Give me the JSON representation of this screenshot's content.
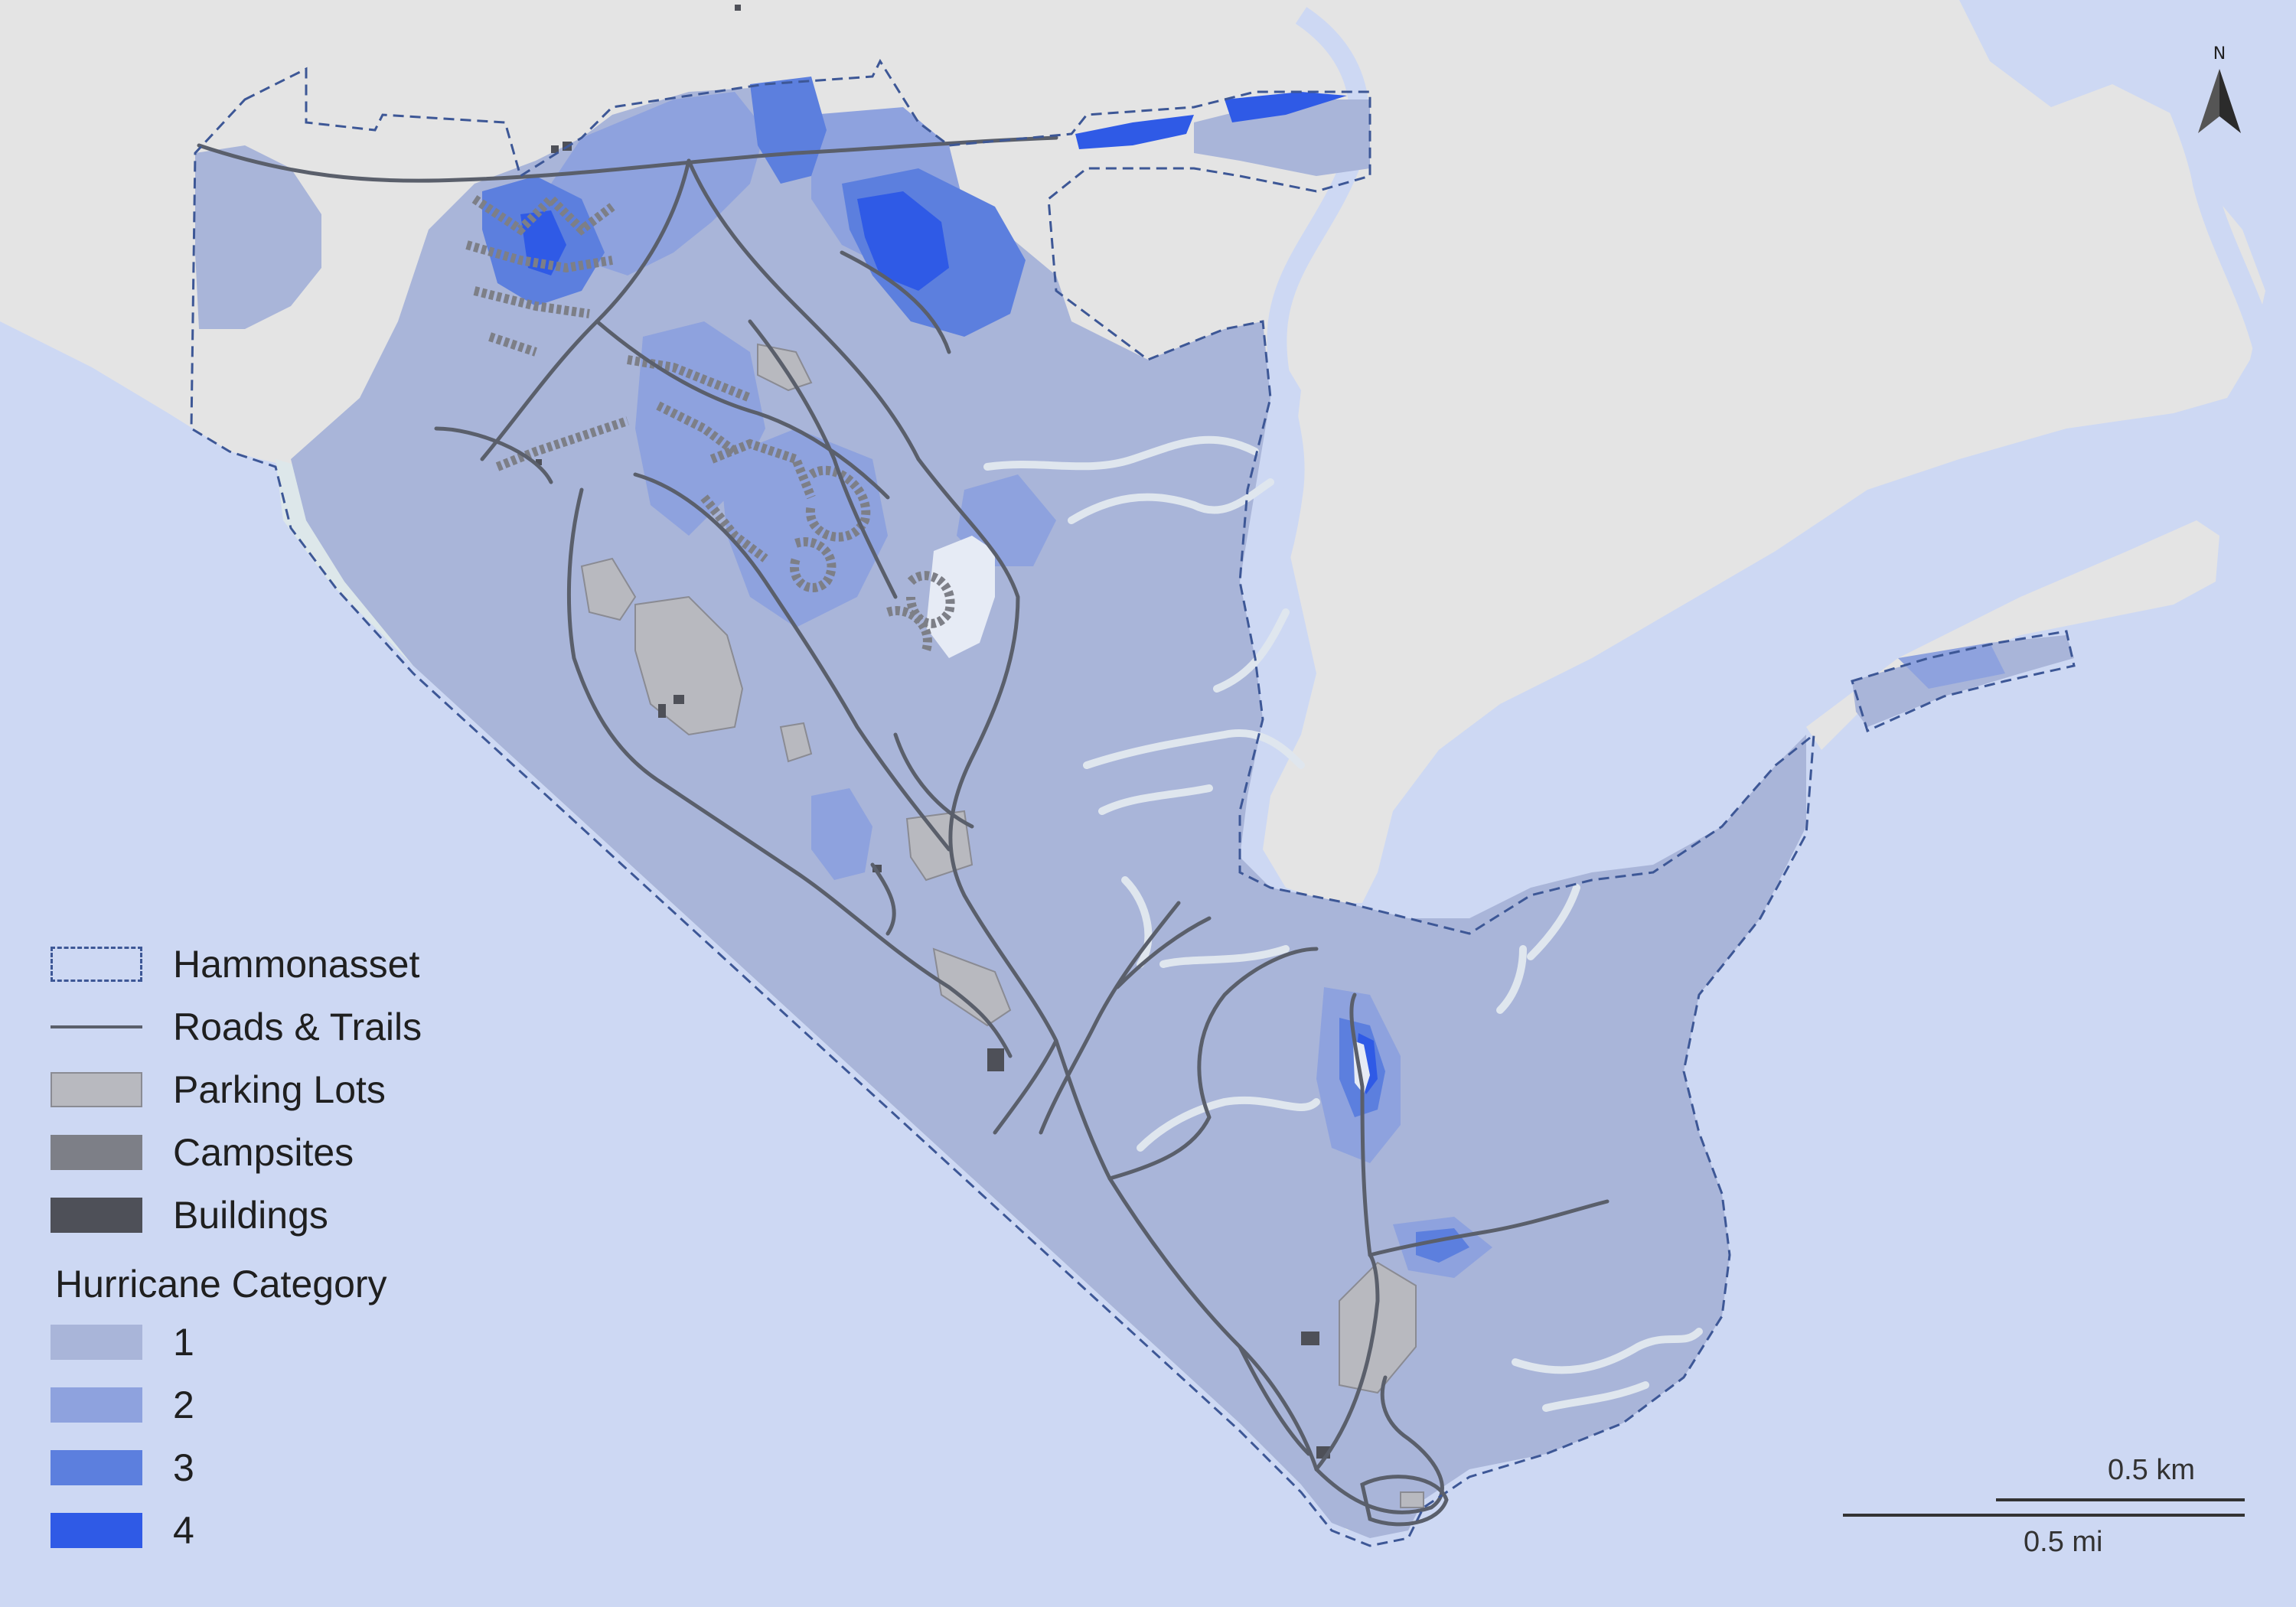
{
  "legend": {
    "boundary_label": "Hammonasset",
    "roads_label": "Roads & Trails",
    "parking_label": "Parking Lots",
    "campsites_label": "Campsites",
    "buildings_label": "Buildings",
    "category_title": "Hurricane Category",
    "categories": [
      {
        "label": "1",
        "color": "#a9b5d9"
      },
      {
        "label": "2",
        "color": "#8ea2de"
      },
      {
        "label": "3",
        "color": "#5c7fde"
      },
      {
        "label": "4",
        "color": "#2f5ae6"
      }
    ]
  },
  "colors": {
    "water": "#cdd8f3",
    "land": "#e4e4e4",
    "beach": "#dde7ea",
    "road": "#5a5f6b",
    "parking": "#b8b9bf",
    "campsite": "#7d7f87",
    "building": "#4e5058",
    "boundary": "#3d5796"
  },
  "north_arrow": {
    "label": "N",
    "icon": "north-arrow-icon"
  },
  "scale_bar": {
    "km_label": "0.5 km",
    "mi_label": "0.5 mi"
  }
}
